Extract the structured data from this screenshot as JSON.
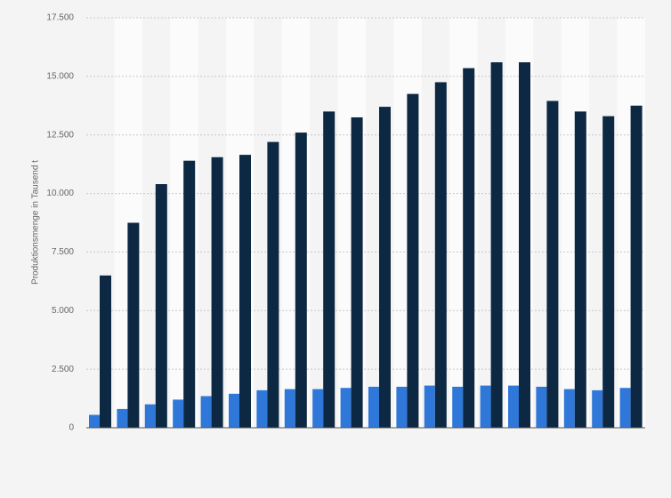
{
  "chart_data": {
    "type": "bar",
    "y_label": "Produktionsmenge in Tausend t",
    "categories": [
      null,
      null,
      null,
      null,
      null,
      null,
      null,
      null,
      null,
      null,
      null,
      null,
      null,
      null,
      null,
      null,
      null,
      null,
      null,
      null
    ],
    "series": [
      {
        "color": "#2f77d8",
        "values": [
          550,
          800,
          1000,
          1200,
          1350,
          1450,
          1600,
          1650,
          1650,
          1700,
          1750,
          1750,
          1800,
          1750,
          1800,
          1800,
          1750,
          1650,
          1600,
          1700
        ]
      },
      {
        "color": "#0d2842",
        "values": [
          6500,
          8750,
          10400,
          11400,
          11550,
          11650,
          12200,
          12600,
          13500,
          13250,
          13700,
          14250,
          14750,
          15350,
          15600,
          15600,
          13950,
          13500,
          13300,
          13750
        ]
      }
    ],
    "ylim": [
      0,
      17500
    ],
    "yticks": [
      0,
      {
        "value": 2500,
        "label": "2.500"
      },
      {
        "value": 5000,
        "label": "5.000"
      },
      {
        "value": 7500,
        "label": "7.500"
      },
      {
        "value": 10000,
        "label": "10.000"
      },
      {
        "value": 12500,
        "label": "12.500"
      },
      {
        "value": 15000,
        "label": "15.000"
      },
      {
        "value": 17500,
        "label": "17.500"
      }
    ],
    "grid": true
  }
}
